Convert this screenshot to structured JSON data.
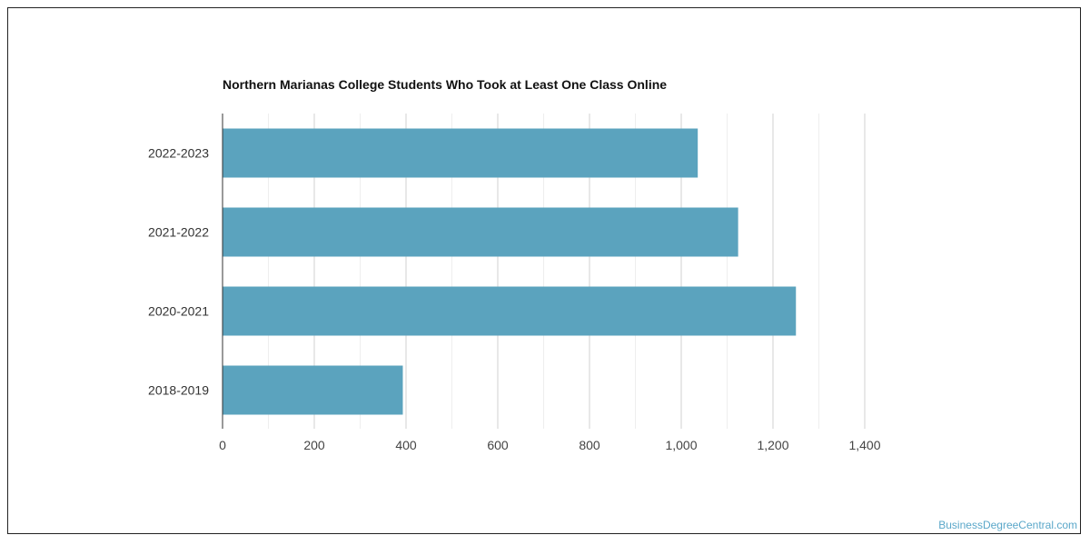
{
  "chart_data": {
    "type": "bar",
    "orientation": "horizontal",
    "title": "Northern Marianas College Students Who Took at Least One Class Online",
    "categories": [
      "2022-2023",
      "2021-2022",
      "2020-2021",
      "2018-2019"
    ],
    "values": [
      1036,
      1124,
      1250,
      393
    ],
    "xlim": [
      0,
      1400
    ],
    "x_ticks": [
      0,
      200,
      400,
      600,
      800,
      1000,
      1200,
      1400
    ],
    "x_tick_labels": [
      "0",
      "200",
      "400",
      "600",
      "800",
      "1,000",
      "1,200",
      "1,400"
    ],
    "grid": true,
    "bar_color": "#5ba3be",
    "xlabel": "",
    "ylabel": ""
  },
  "watermark": "BusinessDegreeCentral.com"
}
